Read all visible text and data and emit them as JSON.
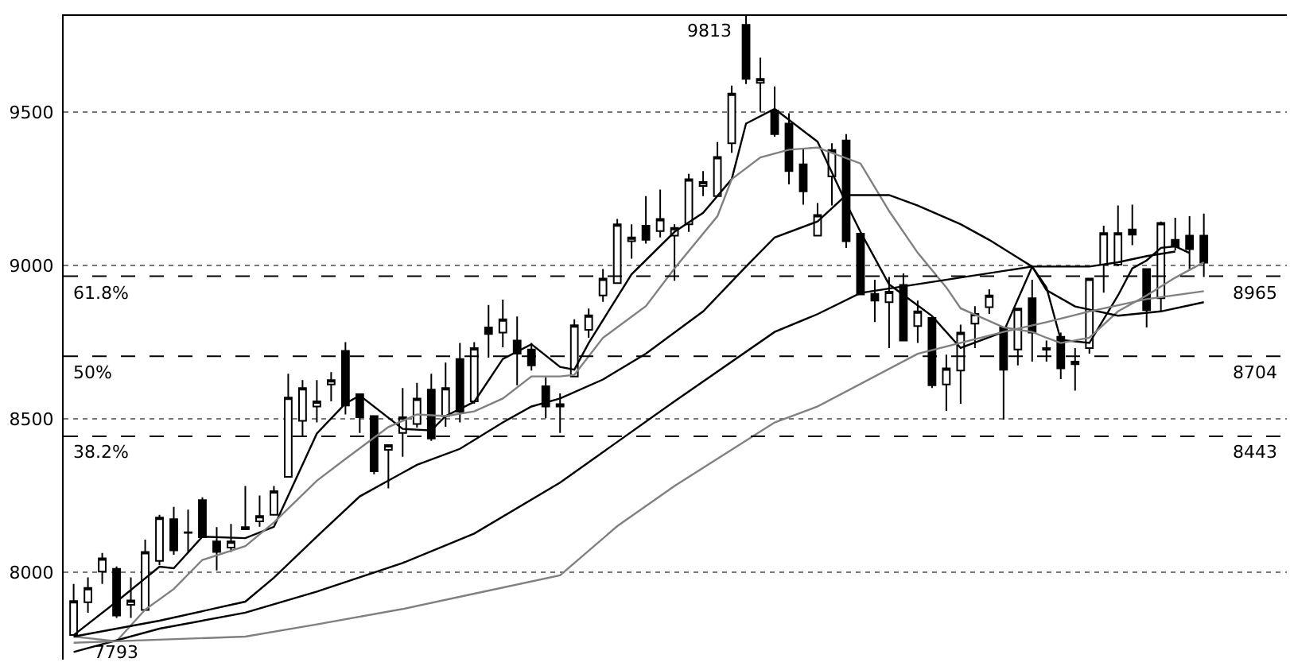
{
  "chart_data": {
    "type": "candlestick",
    "categories": [
      null,
      null,
      null,
      null,
      null,
      null,
      null,
      null,
      null,
      null,
      null,
      null,
      null,
      null,
      null,
      null,
      null,
      null,
      null,
      null,
      null,
      null,
      null,
      null,
      null,
      null,
      null,
      null,
      null,
      null,
      null,
      null,
      null,
      null,
      null,
      null,
      null,
      null,
      null,
      null,
      null,
      null,
      null,
      null,
      null,
      null,
      null,
      null,
      null,
      null,
      null,
      null,
      null,
      null,
      null,
      null,
      null,
      null,
      null,
      null,
      null,
      null,
      null,
      null,
      null,
      null,
      null,
      null,
      null,
      null,
      null,
      null,
      null,
      null,
      null,
      null,
      null,
      null,
      null,
      null
    ],
    "ohlc": [
      [
        7795,
        7962,
        7793,
        7906
      ],
      [
        7902,
        7983,
        7868,
        7949
      ],
      [
        8002,
        8063,
        7962,
        8045
      ],
      [
        8011,
        8019,
        7851,
        7859
      ],
      [
        7894,
        7983,
        7851,
        7908
      ],
      [
        7877,
        8106,
        7877,
        8066
      ],
      [
        8037,
        8187,
        8023,
        8178
      ],
      [
        8173,
        8213,
        8057,
        8071
      ],
      [
        8130,
        8204,
        8066,
        8128
      ],
      [
        8235,
        8244,
        8114,
        8114
      ],
      [
        8100,
        8147,
        8006,
        8066
      ],
      [
        8080,
        8157,
        8066,
        8100
      ],
      [
        8140,
        8281,
        8140,
        8147
      ],
      [
        8166,
        8250,
        8148,
        8183
      ],
      [
        8187,
        8281,
        8187,
        8264
      ],
      [
        8311,
        8647,
        8311,
        8569
      ],
      [
        8493,
        8626,
        8440,
        8600
      ],
      [
        8540,
        8626,
        8488,
        8557
      ],
      [
        8612,
        8652,
        8557,
        8626
      ],
      [
        8721,
        8750,
        8514,
        8543
      ],
      [
        8580,
        8580,
        8454,
        8505
      ],
      [
        8509,
        8509,
        8319,
        8329
      ],
      [
        8399,
        8414,
        8273,
        8414
      ],
      [
        8454,
        8600,
        8376,
        8505
      ],
      [
        8483,
        8617,
        8471,
        8566
      ],
      [
        8595,
        8647,
        8428,
        8436
      ],
      [
        8509,
        8683,
        8474,
        8600
      ],
      [
        8695,
        8747,
        8488,
        8523
      ],
      [
        8557,
        8750,
        8549,
        8730
      ],
      [
        8798,
        8871,
        8699,
        8776
      ],
      [
        8781,
        8888,
        8733,
        8824
      ],
      [
        8755,
        8833,
        8609,
        8712
      ],
      [
        8726,
        8747,
        8657,
        8674
      ],
      [
        8606,
        8635,
        8502,
        8540
      ],
      [
        8540,
        8583,
        8454,
        8548
      ],
      [
        8638,
        8824,
        8638,
        8805
      ],
      [
        8790,
        8859,
        8764,
        8837
      ],
      [
        8902,
        8988,
        8881,
        8957
      ],
      [
        8942,
        9151,
        8942,
        9134
      ],
      [
        9079,
        9134,
        9022,
        9091
      ],
      [
        9129,
        9226,
        9071,
        9083
      ],
      [
        9112,
        9247,
        9091,
        9151
      ],
      [
        9097,
        9134,
        8950,
        9122
      ],
      [
        9134,
        9298,
        9109,
        9281
      ],
      [
        9259,
        9307,
        9226,
        9272
      ],
      [
        9226,
        9402,
        9226,
        9353
      ],
      [
        9398,
        9586,
        9367,
        9560
      ],
      [
        9784,
        9813,
        9591,
        9608
      ],
      [
        9595,
        9677,
        9501,
        9608
      ],
      [
        9505,
        9583,
        9419,
        9428
      ],
      [
        9462,
        9496,
        9264,
        9307
      ],
      [
        9329,
        9381,
        9198,
        9241
      ],
      [
        9097,
        9203,
        9097,
        9164
      ],
      [
        9290,
        9398,
        9195,
        9376
      ],
      [
        9407,
        9428,
        9057,
        9079
      ],
      [
        9103,
        9103,
        8905,
        8905
      ],
      [
        8907,
        8953,
        8815,
        8885
      ],
      [
        8880,
        8962,
        8730,
        8914
      ],
      [
        8936,
        8974,
        8755,
        8755
      ],
      [
        8802,
        8885,
        8747,
        8850
      ],
      [
        8829,
        8833,
        8600,
        8609
      ],
      [
        8612,
        8709,
        8526,
        8664
      ],
      [
        8657,
        8807,
        8549,
        8781
      ],
      [
        8810,
        8867,
        8730,
        8842
      ],
      [
        8864,
        8922,
        8842,
        8902
      ],
      [
        8798,
        8798,
        8497,
        8660
      ],
      [
        8726,
        8859,
        8674,
        8859
      ],
      [
        8893,
        8953,
        8686,
        8781
      ],
      [
        8730,
        8755,
        8686,
        8725
      ],
      [
        8767,
        8781,
        8629,
        8664
      ],
      [
        8678,
        8730,
        8592,
        8686
      ],
      [
        8730,
        8957,
        8712,
        8957
      ],
      [
        9002,
        9129,
        8911,
        9105
      ],
      [
        9002,
        9195,
        8997,
        9105
      ],
      [
        9117,
        9198,
        9066,
        9100
      ],
      [
        8988,
        8988,
        8798,
        8854
      ],
      [
        8893,
        9143,
        8850,
        9138
      ],
      [
        9083,
        9155,
        9048,
        9062
      ],
      [
        9097,
        9160,
        8988,
        9053
      ],
      [
        9097,
        9169,
        8962,
        9009
      ]
    ],
    "series": [
      {
        "type": "line",
        "color": "#000000",
        "values": [
          7795,
          null,
          null,
          7904,
          null,
          null,
          8018,
          8013,
          null,
          8116,
          null,
          null,
          8111,
          null,
          8148,
          null,
          null,
          8452,
          null,
          8550,
          8576,
          null,
          null,
          8467,
          null,
          8462,
          8509,
          null,
          8555,
          null,
          8695,
          null,
          8743,
          null,
          8669,
          8660,
          8747,
          null,
          null,
          8971,
          null,
          null,
          9109,
          null,
          9171,
          null,
          9281,
          9462,
          null,
          9510,
          null,
          null,
          9403,
          null,
          9203,
          9109,
          null,
          8938,
          null,
          null,
          8835,
          null,
          8731,
          null,
          null,
          8783,
          null,
          8996,
          8928,
          8757,
          null,
          8747,
          null,
          8902,
          8990,
          9016,
          9057,
          9062,
          9040,
          null
        ]
      },
      {
        "type": "line",
        "color": "#808080",
        "values": [
          7790,
          null,
          null,
          7775,
          null,
          7878,
          null,
          7945,
          null,
          8040,
          null,
          null,
          8085,
          null,
          8162,
          null,
          null,
          8298,
          null,
          8369,
          null,
          null,
          8473,
          null,
          8514,
          null,
          8509,
          null,
          8524,
          null,
          8566,
          null,
          8638,
          null,
          8638,
          8643,
          null,
          8764,
          null,
          null,
          8867,
          null,
          8990,
          null,
          null,
          9160,
          9281,
          null,
          9352,
          null,
          9377,
          null,
          9384,
          null,
          null,
          9332,
          null,
          9177,
          null,
          9041,
          null,
          8928,
          8860,
          null,
          null,
          8798,
          null,
          8783,
          8764,
          8747,
          null,
          8764,
          null,
          8850,
          null,
          8902,
          null,
          8960,
          null,
          9010
        ]
      },
      {
        "type": "line",
        "color": "#000000",
        "values": [
          7790,
          null,
          null,
          null,
          null,
          null,
          7842,
          null,
          null,
          null,
          null,
          null,
          7904,
          null,
          7982,
          null,
          null,
          8116,
          null,
          null,
          8247,
          null,
          null,
          null,
          8350,
          null,
          null,
          8402,
          null,
          null,
          8488,
          null,
          8540,
          null,
          8566,
          null,
          null,
          8628,
          null,
          null,
          8712,
          null,
          null,
          null,
          8850,
          null,
          null,
          8996,
          null,
          9091,
          null,
          null,
          9143,
          null,
          9229,
          null,
          null,
          9229,
          null,
          9195,
          null,
          null,
          9134,
          null,
          9083,
          null,
          null,
          8996,
          8919,
          null,
          8866,
          null,
          null,
          8836,
          null,
          null,
          8850,
          null,
          null,
          8880
        ]
      },
      {
        "type": "line",
        "color": "#000000",
        "values": [
          7740,
          null,
          null,
          null,
          null,
          null,
          7816,
          null,
          null,
          null,
          null,
          null,
          7868,
          null,
          null,
          null,
          null,
          7937,
          null,
          null,
          null,
          null,
          null,
          8030,
          null,
          null,
          null,
          null,
          8126,
          null,
          null,
          null,
          null,
          null,
          8292,
          null,
          null,
          null,
          null,
          null,
          null,
          null,
          8557,
          null,
          null,
          null,
          null,
          null,
          null,
          8783,
          null,
          null,
          8841,
          null,
          null,
          8910,
          null,
          null,
          null,
          null,
          null,
          null,
          null,
          null,
          null,
          null,
          null,
          8996,
          null,
          null,
          null,
          8996,
          null,
          9010,
          null,
          9030,
          null,
          9045,
          null,
          null
        ]
      },
      {
        "type": "line",
        "color": "#808080",
        "values": [
          7770,
          null,
          null,
          null,
          null,
          null,
          null,
          null,
          null,
          null,
          null,
          null,
          7790,
          null,
          null,
          null,
          null,
          7830,
          null,
          null,
          null,
          null,
          null,
          7880,
          null,
          null,
          null,
          null,
          7930,
          null,
          null,
          null,
          null,
          null,
          7990,
          null,
          null,
          null,
          8150,
          null,
          null,
          null,
          8281,
          null,
          null,
          null,
          null,
          null,
          null,
          8488,
          null,
          null,
          8540,
          null,
          null,
          null,
          null,
          null,
          null,
          8712,
          null,
          null,
          null,
          null,
          null,
          8783,
          null,
          null,
          8815,
          null,
          null,
          8850,
          null,
          null,
          null,
          8890,
          null,
          null,
          null,
          8916
        ]
      }
    ],
    "ylim": [
      7715,
      9813
    ],
    "yticks": [
      8000,
      8500,
      9000,
      9500
    ],
    "grid": "y",
    "tick_labels": "y",
    "ref_lines": [
      {
        "axis": "y",
        "value": 8965,
        "label": "8965",
        "line_style": "dashed",
        "color": "#000000"
      },
      {
        "axis": "y",
        "value": 8704,
        "label": "8704",
        "line_style": "dashed",
        "color": "#000000"
      },
      {
        "axis": "y",
        "value": 8443,
        "label": "8443",
        "line_style": "dashed",
        "color": "#000000"
      }
    ],
    "annotations": [
      {
        "text": "61.8%",
        "y": 8965
      },
      {
        "text": "50%",
        "y": 8704
      },
      {
        "text": "38.2%",
        "y": 8443
      },
      "9813",
      "7793"
    ]
  }
}
